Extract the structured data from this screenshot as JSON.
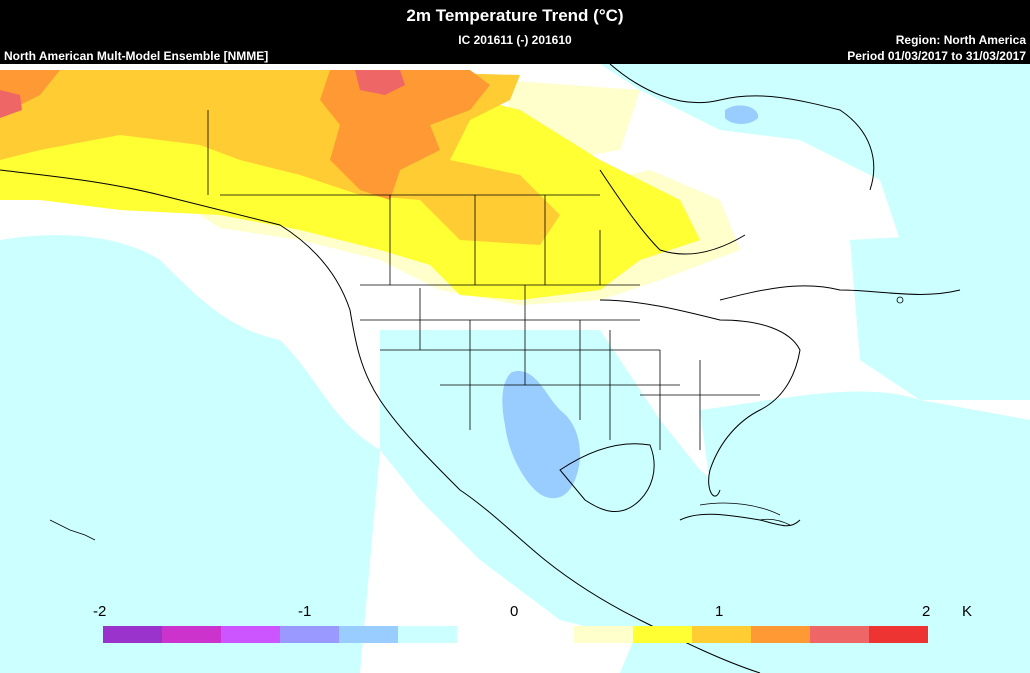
{
  "header": {
    "title": "2m Temperature Trend (°C)",
    "ic": "IC 201611 (-) 201610",
    "model": "North American Mult-Model Ensemble [NMME]",
    "region": "Region: North America",
    "period": "Period 01/03/2017 to 31/03/2017"
  },
  "legend": {
    "unit": "K",
    "ticks": [
      "-2",
      "-1",
      "0",
      "1",
      "2"
    ],
    "colors": {
      "neg": [
        "#9933cc",
        "#cc33cc",
        "#cc55ff",
        "#9999ff",
        "#99ccff",
        "#ccffff"
      ],
      "pos": [
        "#ffffcc",
        "#ffff33",
        "#ffcc33",
        "#ff9933",
        "#ee6666",
        "#ee3333"
      ]
    }
  },
  "map": {
    "background_color": "#ffffff",
    "land_lines": "#000000"
  }
}
